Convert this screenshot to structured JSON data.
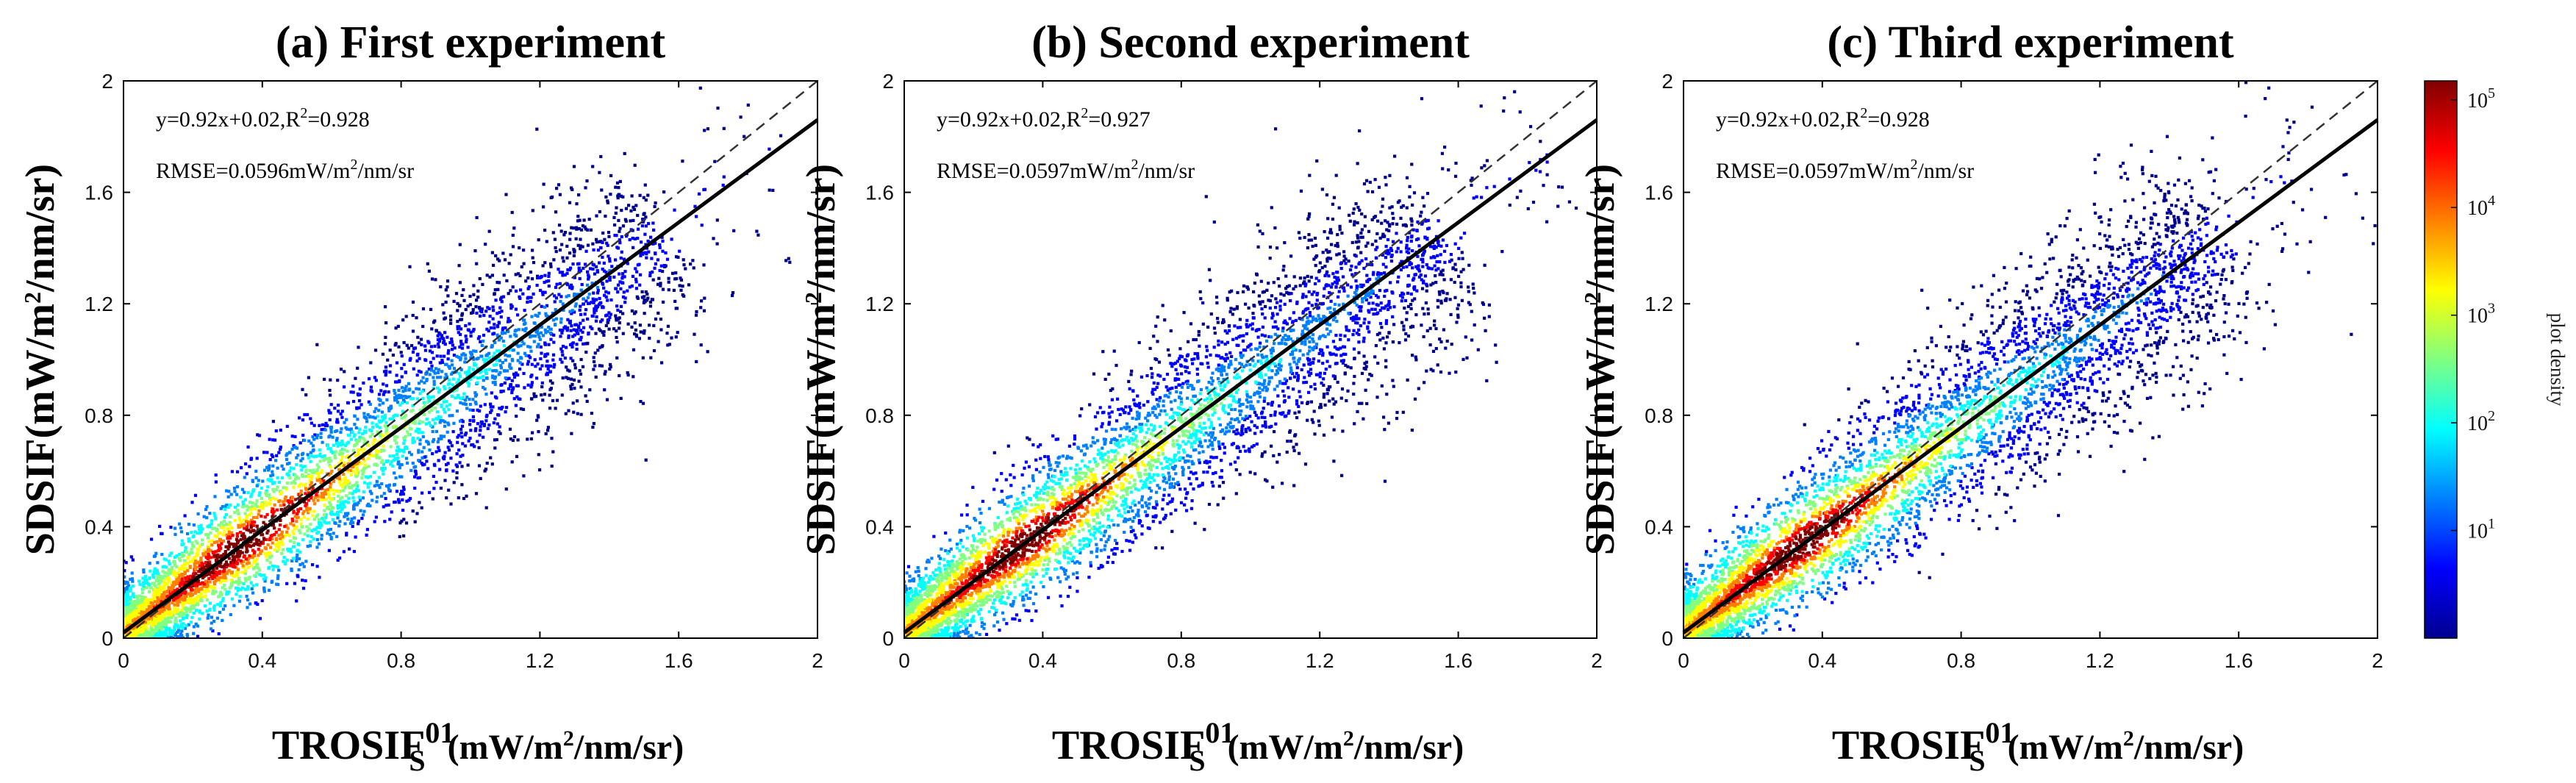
{
  "figure": {
    "colorbar": {
      "label": "plot density",
      "ticks": [
        {
          "base": "10",
          "exp": "1",
          "value": 10
        },
        {
          "base": "10",
          "exp": "2",
          "value": 100
        },
        {
          "base": "10",
          "exp": "3",
          "value": 1000
        },
        {
          "base": "10",
          "exp": "4",
          "value": 10000
        },
        {
          "base": "10",
          "exp": "5",
          "value": 100000
        }
      ],
      "range": [
        1,
        150000
      ],
      "scale": "log",
      "colormap": [
        "#00008f",
        "#0000ff",
        "#0080ff",
        "#00ffff",
        "#80ff80",
        "#ffff00",
        "#ff8000",
        "#ff0000",
        "#800000"
      ]
    },
    "line_colors": {
      "fit": "#000000",
      "one_to_one": "#333333"
    }
  },
  "chart_data": [
    {
      "type": "scatter",
      "subtype": "density",
      "title": "(a) First experiment",
      "xlabel": {
        "base": "TROSIF",
        "sub": "S",
        "sup": "01",
        "unit": "(mW/m",
        "unit_sup": "2",
        "unit_end": "/nm/sr)"
      },
      "ylabel": {
        "pre": "SDSIF(mW/m",
        "sup": "2",
        "post": "/nm/sr)"
      },
      "xlim": [
        0,
        2
      ],
      "ylim": [
        0,
        2
      ],
      "xticks": [
        "0",
        "0.4",
        "0.8",
        "1.2",
        "1.6",
        "2"
      ],
      "yticks": [
        "0",
        "0.4",
        "0.8",
        "1.2",
        "1.6",
        "2"
      ],
      "fit": {
        "slope": 0.92,
        "intercept": 0.02
      },
      "one_to_one": true,
      "annotation": {
        "eq": "y=0.92x+0.02,R",
        "eq_sup": "2",
        "eq_end": "=0.928",
        "rmse": "RMSE=0.0596mW/m",
        "rmse_sup": "2",
        "rmse_end": "/nm/sr"
      },
      "density_core": {
        "x": 0.35,
        "y": 0.34
      }
    },
    {
      "type": "scatter",
      "subtype": "density",
      "title": "(b) Second experiment",
      "xlabel": {
        "base": "TROSIF",
        "sub": "S",
        "sup": "01",
        "unit": "(mW/m",
        "unit_sup": "2",
        "unit_end": "/nm/sr)"
      },
      "ylabel": {
        "pre": "SDSIF(mW/m",
        "sup": "2",
        "post": "/nm/sr)"
      },
      "xlim": [
        0,
        2
      ],
      "ylim": [
        0,
        2
      ],
      "xticks": [
        "0",
        "0.4",
        "0.8",
        "1.2",
        "1.6",
        "2"
      ],
      "yticks": [
        "0",
        "0.4",
        "0.8",
        "1.2",
        "1.6",
        "2"
      ],
      "fit": {
        "slope": 0.92,
        "intercept": 0.02
      },
      "one_to_one": true,
      "annotation": {
        "eq": "y=0.92x+0.02,R",
        "eq_sup": "2",
        "eq_end": "=0.927",
        "rmse": "RMSE=0.0597mW/m",
        "rmse_sup": "2",
        "rmse_end": "/nm/sr"
      },
      "density_core": {
        "x": 0.35,
        "y": 0.34
      }
    },
    {
      "type": "scatter",
      "subtype": "density",
      "title": "(c) Third experiment",
      "xlabel": {
        "base": "TROSIF",
        "sub": "S",
        "sup": "01",
        "unit": "(mW/m",
        "unit_sup": "2",
        "unit_end": "/nm/sr)"
      },
      "ylabel": {
        "pre": "SDSIF(mW/m",
        "sup": "2",
        "post": "/nm/sr)"
      },
      "xlim": [
        0,
        2
      ],
      "ylim": [
        0,
        2
      ],
      "xticks": [
        "0",
        "0.4",
        "0.8",
        "1.2",
        "1.6",
        "2"
      ],
      "yticks": [
        "0",
        "0.4",
        "0.8",
        "1.2",
        "1.6",
        "2"
      ],
      "fit": {
        "slope": 0.92,
        "intercept": 0.02
      },
      "one_to_one": true,
      "annotation": {
        "eq": "y=0.92x+0.02,R",
        "eq_sup": "2",
        "eq_end": "=0.928",
        "rmse": "RMSE=0.0597mW/m",
        "rmse_sup": "2",
        "rmse_end": "/nm/sr"
      },
      "density_core": {
        "x": 0.35,
        "y": 0.34
      }
    }
  ]
}
